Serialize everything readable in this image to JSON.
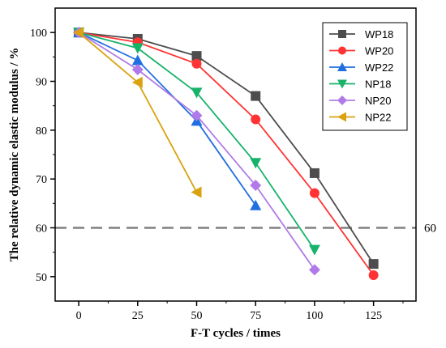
{
  "chart_data": {
    "type": "line",
    "xlabel": "F-T cycles / times",
    "ylabel": "The relative dynamic elastic modulus / %",
    "xlim": [
      -10,
      143
    ],
    "ylim": [
      45,
      105
    ],
    "xticks": [
      0,
      25,
      50,
      75,
      100,
      125
    ],
    "yticks": [
      50,
      60,
      70,
      80,
      90,
      100
    ],
    "grid": false,
    "legend_position": "top-right",
    "reference_line": {
      "y": 60,
      "label": "60",
      "color": "#808080",
      "style": "dashed"
    },
    "series": [
      {
        "name": "WP18",
        "color": "#4d4d4d",
        "marker": "square",
        "x": [
          0,
          25,
          50,
          75,
          100,
          125
        ],
        "y": [
          100,
          98.7,
          95.2,
          87.0,
          71.2,
          52.6
        ]
      },
      {
        "name": "WP20",
        "color": "#ff3333",
        "marker": "circle",
        "x": [
          0,
          25,
          50,
          75,
          100,
          125
        ],
        "y": [
          100,
          98.0,
          93.6,
          82.2,
          67.1,
          50.3
        ]
      },
      {
        "name": "WP22",
        "color": "#1f6fe0",
        "marker": "triangle-up",
        "x": [
          0,
          25,
          50,
          75
        ],
        "y": [
          100,
          94.3,
          81.9,
          64.6
        ]
      },
      {
        "name": "NP18",
        "color": "#18b36b",
        "marker": "triangle-down",
        "x": [
          0,
          25,
          50,
          75,
          100
        ],
        "y": [
          100,
          96.8,
          87.7,
          73.3,
          55.5
        ]
      },
      {
        "name": "NP20",
        "color": "#b07be8",
        "marker": "diamond",
        "x": [
          0,
          25,
          50,
          75,
          100
        ],
        "y": [
          100,
          92.4,
          83.0,
          68.7,
          51.4
        ]
      },
      {
        "name": "NP22",
        "color": "#d9a20f",
        "marker": "triangle-left",
        "x": [
          0,
          25,
          50
        ],
        "y": [
          100,
          89.8,
          67.3
        ]
      }
    ]
  }
}
